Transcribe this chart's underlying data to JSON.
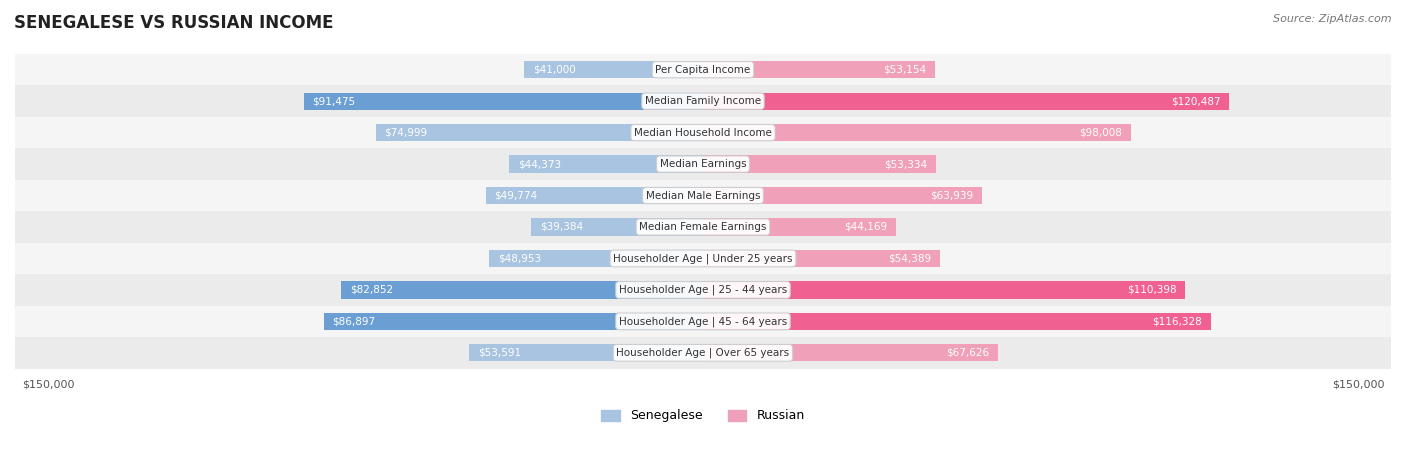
{
  "title": "SENEGALESE VS RUSSIAN INCOME",
  "source": "Source: ZipAtlas.com",
  "categories": [
    "Per Capita Income",
    "Median Family Income",
    "Median Household Income",
    "Median Earnings",
    "Median Male Earnings",
    "Median Female Earnings",
    "Householder Age | Under 25 years",
    "Householder Age | 25 - 44 years",
    "Householder Age | 45 - 64 years",
    "Householder Age | Over 65 years"
  ],
  "senegalese": [
    41000,
    91475,
    74999,
    44373,
    49774,
    39384,
    48953,
    82852,
    86897,
    53591
  ],
  "russian": [
    53154,
    120487,
    98008,
    53334,
    63939,
    44169,
    54389,
    110398,
    116328,
    67626
  ],
  "senegalese_labels": [
    "$41,000",
    "$91,475",
    "$74,999",
    "$44,373",
    "$49,774",
    "$39,384",
    "$48,953",
    "$82,852",
    "$86,897",
    "$53,591"
  ],
  "russian_labels": [
    "$53,154",
    "$120,487",
    "$98,008",
    "$53,334",
    "$63,939",
    "$44,169",
    "$54,389",
    "$110,398",
    "$116,328",
    "$67,626"
  ],
  "max_val": 150000,
  "color_senegalese_light": "#a8c4e0",
  "color_senegalese_dark": "#6b9fd4",
  "color_russian_light": "#f0a0b8",
  "color_russian_dark": "#f06090",
  "color_label_dark_bg": "#ffffff",
  "color_label_light_bg": "#333333",
  "bg_row_light": "#f5f5f5",
  "bg_row_dark": "#ebebeb",
  "axis_label_color": "#555555",
  "legend_senegalese": "Senegalese",
  "legend_russian": "Russian",
  "x_ticks": [
    -150000,
    150000
  ],
  "x_tick_labels": [
    "$150,000",
    "$150,000"
  ]
}
